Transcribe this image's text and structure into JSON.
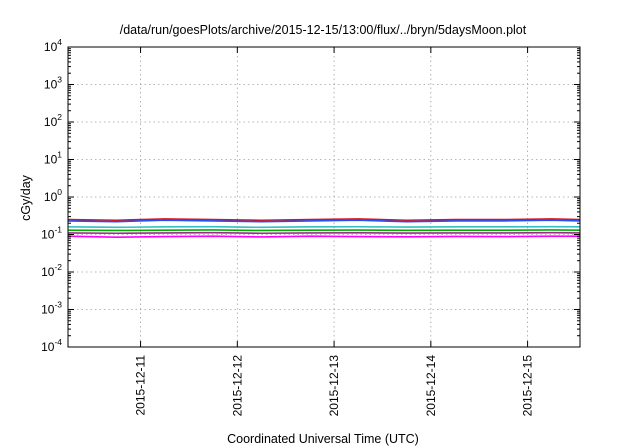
{
  "chart_data": {
    "type": "line",
    "title": "/data/run/goesPlots/archive/2015-12-15/13:00/flux/../bryn/5daysMoon.plot",
    "xlabel": "Coordinated Universal Time (UTC)",
    "ylabel": "cGy/day",
    "yscale": "log",
    "ylim": [
      0.0001,
      10000
    ],
    "xlim": [
      "2015-12-10 06:00",
      "2015-12-15 13:00"
    ],
    "grid": true,
    "legend": "none",
    "y_ticks": [
      {
        "base": "10",
        "exp": "-4",
        "value": 0.0001
      },
      {
        "base": "10",
        "exp": "-3",
        "value": 0.001
      },
      {
        "base": "10",
        "exp": "-2",
        "value": 0.01
      },
      {
        "base": "10",
        "exp": "-1",
        "value": 0.1
      },
      {
        "base": "10",
        "exp": "0",
        "value": 1
      },
      {
        "base": "10",
        "exp": "1",
        "value": 10
      },
      {
        "base": "10",
        "exp": "2",
        "value": 100
      },
      {
        "base": "10",
        "exp": "3",
        "value": 1000
      },
      {
        "base": "10",
        "exp": "4",
        "value": 10000
      }
    ],
    "x_ticks": [
      "2015-12-11",
      "2015-12-12",
      "2015-12-13",
      "2015-12-14",
      "2015-12-15"
    ],
    "series": [
      {
        "color": "#ff00ff",
        "x": [
          "2015-12-10 06:00",
          "2015-12-10 18:00",
          "2015-12-11 06:00",
          "2015-12-11 18:00",
          "2015-12-12 06:00",
          "2015-12-12 18:00",
          "2015-12-13 06:00",
          "2015-12-13 18:00",
          "2015-12-14 06:00",
          "2015-12-14 18:00",
          "2015-12-15 06:00",
          "2015-12-15 13:00"
        ],
        "values": [
          0.09,
          0.085,
          0.088,
          0.09,
          0.086,
          0.09,
          0.088,
          0.087,
          0.089,
          0.088,
          0.09,
          0.09
        ]
      },
      {
        "color": "#9b2a8a",
        "x": [
          "2015-12-10 06:00",
          "2015-12-10 18:00",
          "2015-12-11 06:00",
          "2015-12-11 18:00",
          "2015-12-12 06:00",
          "2015-12-12 18:00",
          "2015-12-13 06:00",
          "2015-12-13 18:00",
          "2015-12-14 06:00",
          "2015-12-14 18:00",
          "2015-12-15 06:00",
          "2015-12-15 13:00"
        ],
        "values": [
          0.11,
          0.108,
          0.11,
          0.112,
          0.108,
          0.11,
          0.111,
          0.109,
          0.11,
          0.11,
          0.112,
          0.11
        ]
      },
      {
        "color": "#00b000",
        "x": [
          "2015-12-10 06:00",
          "2015-12-10 18:00",
          "2015-12-11 06:00",
          "2015-12-11 18:00",
          "2015-12-12 06:00",
          "2015-12-12 18:00",
          "2015-12-13 06:00",
          "2015-12-13 18:00",
          "2015-12-14 06:00",
          "2015-12-14 18:00",
          "2015-12-15 06:00",
          "2015-12-15 13:00"
        ],
        "values": [
          0.13,
          0.128,
          0.13,
          0.132,
          0.128,
          0.13,
          0.131,
          0.129,
          0.13,
          0.13,
          0.132,
          0.13
        ]
      },
      {
        "color": "#33c0c0",
        "x": [
          "2015-12-10 06:00",
          "2015-12-10 18:00",
          "2015-12-11 06:00",
          "2015-12-11 18:00",
          "2015-12-12 06:00",
          "2015-12-12 18:00",
          "2015-12-13 06:00",
          "2015-12-13 18:00",
          "2015-12-14 06:00",
          "2015-12-14 18:00",
          "2015-12-15 06:00",
          "2015-12-15 13:00"
        ],
        "values": [
          0.16,
          0.155,
          0.16,
          0.162,
          0.155,
          0.16,
          0.161,
          0.158,
          0.16,
          0.16,
          0.162,
          0.16
        ]
      },
      {
        "color": "#e01010",
        "x": [
          "2015-12-10 06:00",
          "2015-12-10 18:00",
          "2015-12-11 06:00",
          "2015-12-11 18:00",
          "2015-12-12 06:00",
          "2015-12-12 18:00",
          "2015-12-13 06:00",
          "2015-12-13 18:00",
          "2015-12-14 06:00",
          "2015-12-14 18:00",
          "2015-12-15 06:00",
          "2015-12-15 13:00"
        ],
        "values": [
          0.25,
          0.24,
          0.26,
          0.25,
          0.24,
          0.25,
          0.26,
          0.24,
          0.25,
          0.25,
          0.26,
          0.25
        ]
      },
      {
        "color": "#2050ff",
        "x": [
          "2015-12-10 06:00",
          "2015-12-10 18:00",
          "2015-12-11 06:00",
          "2015-12-11 18:00",
          "2015-12-12 06:00",
          "2015-12-12 18:00",
          "2015-12-13 06:00",
          "2015-12-13 18:00",
          "2015-12-14 06:00",
          "2015-12-14 18:00",
          "2015-12-15 06:00",
          "2015-12-15 13:00"
        ],
        "values": [
          0.23,
          0.22,
          0.24,
          0.23,
          0.22,
          0.23,
          0.24,
          0.22,
          0.23,
          0.23,
          0.24,
          0.23
        ]
      }
    ]
  }
}
